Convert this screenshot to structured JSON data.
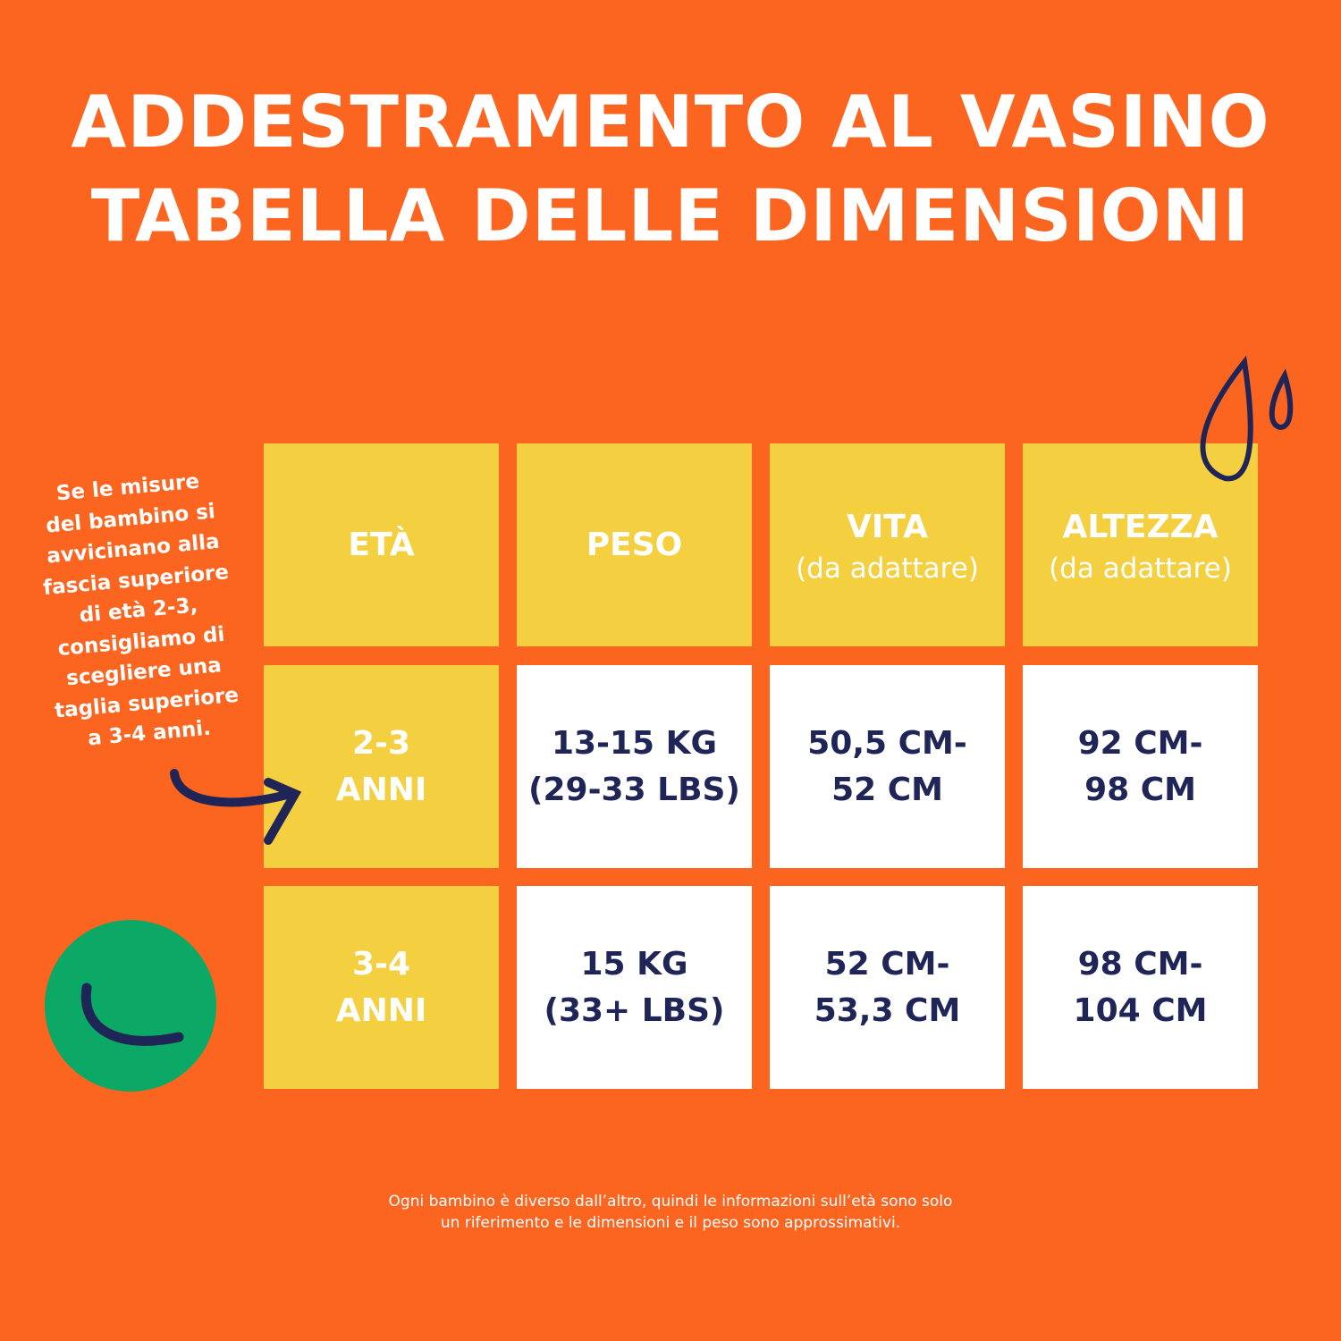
{
  "title": {
    "line1": "ADDESTRAMENTO AL VASINO",
    "line2": "TABELLA DELLE DIMENSIONI"
  },
  "side_note": [
    "Se le misure",
    "del bambino si",
    "avvicinano alla",
    "fascia superiore",
    "di età 2-3,",
    "consigliamo di",
    "scegliere una",
    "taglia superiore",
    "a 3-4 anni."
  ],
  "table": {
    "header": [
      [
        "ETÀ"
      ],
      [
        "PESO"
      ],
      [
        "VITA",
        "(da adattare)"
      ],
      [
        "ALTEZZA",
        "(da adattare)"
      ]
    ],
    "rows": [
      [
        [
          "2-3",
          "ANNI"
        ],
        [
          "13-15 KG",
          "(29-33 LBS)"
        ],
        [
          "50,5 CM-",
          "52 CM"
        ],
        [
          "92 CM-",
          "98 CM"
        ]
      ],
      [
        [
          "3-4",
          "ANNI"
        ],
        [
          "15 KG",
          "(33+ LBS)"
        ],
        [
          "52 CM-",
          "53,3 CM"
        ],
        [
          "98 CM-",
          "104 CM"
        ]
      ]
    ]
  },
  "footnote": [
    "Ogni bambino è diverso dall’altro, quindi le informazioni sull’età sono solo",
    "un riferimento e le dimensioni e il peso sono approssimativi."
  ]
}
